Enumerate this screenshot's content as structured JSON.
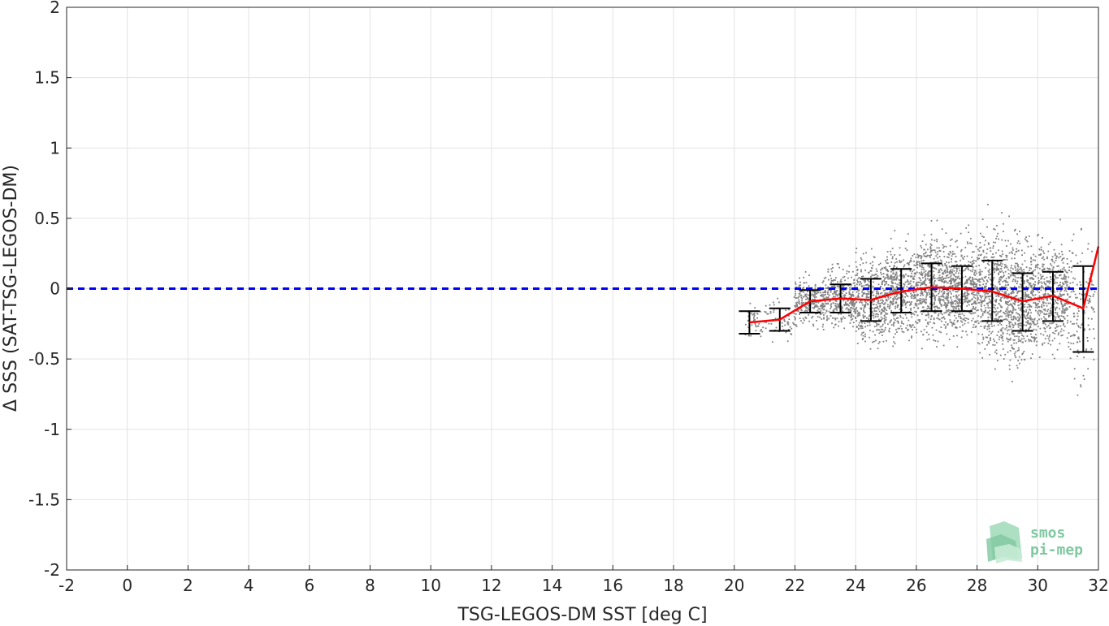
{
  "chart_data": {
    "type": "scatter",
    "xlabel": "TSG-LEGOS-DM SST [deg C]",
    "ylabel": "Δ SSS (SAT-TSG-LEGOS-DM)",
    "xlim": [
      -2,
      32
    ],
    "ylim": [
      -2,
      2
    ],
    "xticks": [
      "-2",
      "0",
      "2",
      "4",
      "6",
      "8",
      "10",
      "12",
      "14",
      "16",
      "18",
      "20",
      "22",
      "24",
      "26",
      "28",
      "30",
      "32"
    ],
    "yticks": [
      "2",
      "1.5",
      "1",
      "0.5",
      "0",
      "-0.5",
      "-1",
      "-1.5",
      "-2"
    ],
    "grid": true,
    "zero_line": {
      "y": 0,
      "color": "#0000ff",
      "style": "dashed"
    },
    "scatter_color": "#808080",
    "scatter_clusters": [
      {
        "x": [
          20.3,
          21.0
        ],
        "y_center": -0.24,
        "y_spread": 0.06,
        "n": 40
      },
      {
        "x": [
          21.0,
          22.0
        ],
        "y_center": -0.22,
        "y_spread": 0.07,
        "n": 60
      },
      {
        "x": [
          22.0,
          23.0
        ],
        "y_center": -0.09,
        "y_spread": 0.08,
        "n": 260
      },
      {
        "x": [
          23.0,
          24.0
        ],
        "y_center": -0.07,
        "y_spread": 0.1,
        "n": 320
      },
      {
        "x": [
          24.0,
          25.0
        ],
        "y_center": -0.08,
        "y_spread": 0.15,
        "n": 380
      },
      {
        "x": [
          25.0,
          26.0
        ],
        "y_center": -0.02,
        "y_spread": 0.15,
        "n": 420
      },
      {
        "x": [
          26.0,
          27.0
        ],
        "y_center": 0.01,
        "y_spread": 0.17,
        "n": 500
      },
      {
        "x": [
          27.0,
          28.0
        ],
        "y_center": 0.0,
        "y_spread": 0.16,
        "n": 480
      },
      {
        "x": [
          28.0,
          29.0
        ],
        "y_center": -0.02,
        "y_spread": 0.21,
        "n": 480
      },
      {
        "x": [
          29.0,
          30.0
        ],
        "y_center": -0.09,
        "y_spread": 0.21,
        "n": 520
      },
      {
        "x": [
          30.0,
          31.0
        ],
        "y_center": -0.05,
        "y_spread": 0.18,
        "n": 420
      },
      {
        "x": [
          31.0,
          31.9
        ],
        "y_center": -0.14,
        "y_spread": 0.25,
        "n": 160
      }
    ],
    "binned_mean": {
      "color": "#ff0000",
      "x": [
        20.5,
        21.5,
        22.5,
        23.5,
        24.5,
        25.5,
        26.5,
        27.5,
        28.5,
        29.5,
        30.5,
        31.5,
        32.0
      ],
      "y": [
        -0.24,
        -0.22,
        -0.09,
        -0.07,
        -0.08,
        -0.02,
        0.01,
        0.0,
        -0.02,
        -0.09,
        -0.05,
        -0.14,
        0.3
      ]
    },
    "error_bars": {
      "color": "#000000",
      "x": [
        20.5,
        21.5,
        22.5,
        23.5,
        24.5,
        25.5,
        26.5,
        27.5,
        28.5,
        29.5,
        30.5,
        31.5
      ],
      "low": [
        -0.32,
        -0.3,
        -0.17,
        -0.17,
        -0.23,
        -0.17,
        -0.16,
        -0.16,
        -0.23,
        -0.3,
        -0.23,
        -0.45
      ],
      "high": [
        -0.16,
        -0.14,
        -0.01,
        0.03,
        0.07,
        0.14,
        0.18,
        0.16,
        0.2,
        0.11,
        0.12,
        0.16
      ]
    }
  },
  "logo": {
    "line1": "smos",
    "line2": "pi-mep"
  }
}
